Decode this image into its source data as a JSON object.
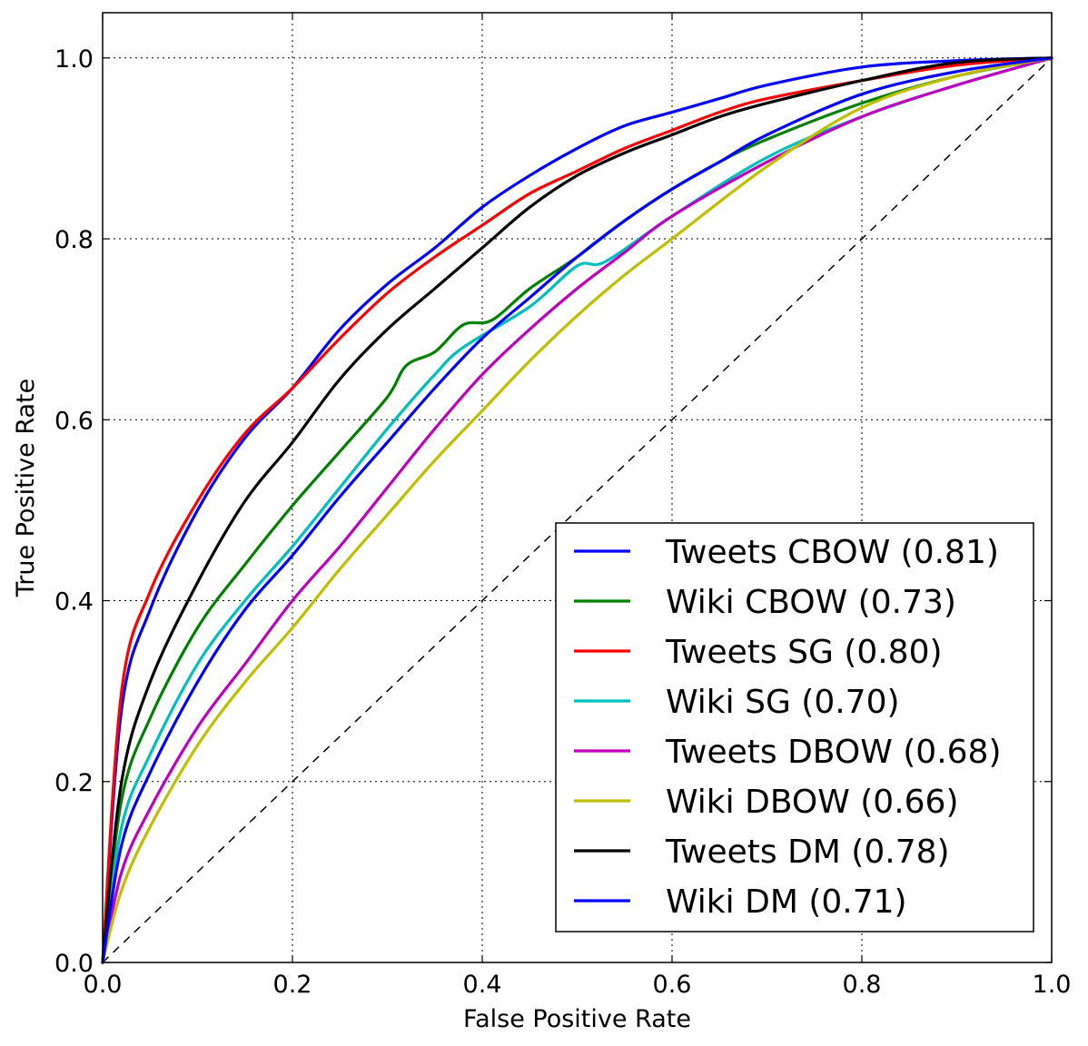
{
  "chart_data": {
    "type": "line",
    "title": "",
    "xlabel": "False Positive Rate",
    "ylabel": "True Positive Rate",
    "xlim": [
      0.0,
      1.0
    ],
    "ylim": [
      0.0,
      1.05
    ],
    "x_ticks": [
      "0.0",
      "0.2",
      "0.4",
      "0.6",
      "0.8",
      "1.0"
    ],
    "y_ticks": [
      "0.0",
      "0.2",
      "0.4",
      "0.6",
      "0.8",
      "1.0"
    ],
    "grid": true,
    "grid_style": "dotted",
    "legend_position": "lower-right",
    "diagonal_reference": true,
    "series": [
      {
        "name": "Tweets CBOW (0.81)",
        "color": "#0000ff",
        "x": [
          0,
          0.02,
          0.05,
          0.1,
          0.15,
          0.2,
          0.25,
          0.3,
          0.35,
          0.4,
          0.45,
          0.5,
          0.55,
          0.6,
          0.65,
          0.7,
          0.8,
          0.9,
          1.0
        ],
        "y": [
          0,
          0.28,
          0.39,
          0.5,
          0.58,
          0.635,
          0.7,
          0.75,
          0.79,
          0.835,
          0.87,
          0.9,
          0.925,
          0.94,
          0.955,
          0.97,
          0.99,
          0.997,
          1.0
        ]
      },
      {
        "name": "Wiki CBOW (0.73)",
        "color": "#008000",
        "x": [
          0,
          0.02,
          0.05,
          0.1,
          0.15,
          0.2,
          0.25,
          0.3,
          0.32,
          0.35,
          0.38,
          0.41,
          0.45,
          0.5,
          0.55,
          0.6,
          0.65,
          0.7,
          0.8,
          0.9,
          1.0
        ],
        "y": [
          0,
          0.18,
          0.27,
          0.37,
          0.44,
          0.505,
          0.565,
          0.625,
          0.66,
          0.675,
          0.705,
          0.71,
          0.745,
          0.78,
          0.82,
          0.855,
          0.885,
          0.91,
          0.95,
          0.98,
          1.0
        ]
      },
      {
        "name": "Tweets SG (0.80)",
        "color": "#ff0000",
        "x": [
          0,
          0.02,
          0.05,
          0.1,
          0.15,
          0.2,
          0.25,
          0.3,
          0.35,
          0.4,
          0.45,
          0.5,
          0.55,
          0.6,
          0.65,
          0.7,
          0.8,
          0.9,
          1.0
        ],
        "y": [
          0,
          0.3,
          0.41,
          0.51,
          0.585,
          0.635,
          0.69,
          0.74,
          0.78,
          0.815,
          0.85,
          0.875,
          0.9,
          0.92,
          0.94,
          0.955,
          0.975,
          0.992,
          1.0
        ]
      },
      {
        "name": "Wiki SG (0.70)",
        "color": "#00bfbf",
        "x": [
          0,
          0.02,
          0.05,
          0.1,
          0.15,
          0.2,
          0.25,
          0.3,
          0.35,
          0.38,
          0.45,
          0.5,
          0.53,
          0.6,
          0.7,
          0.8,
          0.9,
          1.0
        ],
        "y": [
          0,
          0.15,
          0.23,
          0.33,
          0.4,
          0.46,
          0.525,
          0.59,
          0.65,
          0.68,
          0.725,
          0.77,
          0.775,
          0.825,
          0.89,
          0.935,
          0.97,
          1.0
        ]
      },
      {
        "name": "Tweets DBOW (0.68)",
        "color": "#bf00bf",
        "x": [
          0,
          0.02,
          0.05,
          0.1,
          0.15,
          0.2,
          0.25,
          0.3,
          0.35,
          0.4,
          0.45,
          0.5,
          0.55,
          0.6,
          0.7,
          0.8,
          0.9,
          1.0
        ],
        "y": [
          0,
          0.1,
          0.17,
          0.26,
          0.33,
          0.4,
          0.46,
          0.525,
          0.59,
          0.65,
          0.7,
          0.745,
          0.785,
          0.825,
          0.885,
          0.935,
          0.97,
          1.0
        ]
      },
      {
        "name": "Wiki DBOW (0.66)",
        "color": "#bfbf00",
        "x": [
          0,
          0.02,
          0.05,
          0.1,
          0.15,
          0.2,
          0.25,
          0.3,
          0.35,
          0.4,
          0.45,
          0.5,
          0.55,
          0.6,
          0.7,
          0.8,
          0.9,
          1.0
        ],
        "y": [
          0,
          0.08,
          0.15,
          0.24,
          0.31,
          0.37,
          0.435,
          0.495,
          0.555,
          0.61,
          0.665,
          0.715,
          0.76,
          0.8,
          0.88,
          0.945,
          0.98,
          1.0
        ]
      },
      {
        "name": "Tweets DM (0.78)",
        "color": "#000000",
        "x": [
          0,
          0.02,
          0.05,
          0.1,
          0.15,
          0.2,
          0.25,
          0.3,
          0.35,
          0.4,
          0.45,
          0.5,
          0.55,
          0.6,
          0.65,
          0.7,
          0.8,
          0.9,
          1.0
        ],
        "y": [
          0,
          0.2,
          0.31,
          0.42,
          0.51,
          0.575,
          0.645,
          0.7,
          0.745,
          0.79,
          0.835,
          0.87,
          0.895,
          0.915,
          0.935,
          0.95,
          0.975,
          0.995,
          1.0
        ]
      },
      {
        "name": "Wiki DM (0.71)",
        "color": "#0000ff",
        "x": [
          0,
          0.02,
          0.05,
          0.1,
          0.15,
          0.2,
          0.25,
          0.3,
          0.35,
          0.4,
          0.45,
          0.5,
          0.55,
          0.6,
          0.65,
          0.7,
          0.8,
          0.9,
          1.0
        ],
        "y": [
          0,
          0.13,
          0.21,
          0.31,
          0.39,
          0.45,
          0.515,
          0.575,
          0.635,
          0.69,
          0.735,
          0.78,
          0.82,
          0.855,
          0.885,
          0.915,
          0.96,
          0.985,
          1.0
        ]
      }
    ]
  }
}
